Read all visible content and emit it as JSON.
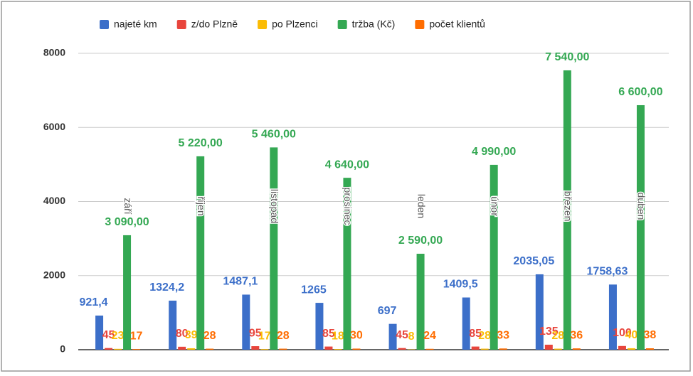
{
  "chart_data": {
    "type": "bar",
    "categories": [
      "září",
      "říjen",
      "listopad",
      "prosinec",
      "leden",
      "únor",
      "březen",
      "duben"
    ],
    "series": [
      {
        "name": "najeté km",
        "color": "#3c6fc9",
        "values": [
          921.4,
          1324.2,
          1487.1,
          1265,
          697,
          1409.5,
          2035.05,
          1758.63
        ],
        "value_labels": [
          "921,4",
          "1324,2",
          "1487,1",
          "1265",
          "697",
          "1409,5",
          "2035,05",
          "1758,63"
        ]
      },
      {
        "name": "z/do Plzně",
        "color": "#e8453c",
        "values": [
          45,
          80,
          95,
          85,
          45,
          85,
          135,
          100
        ]
      },
      {
        "name": "po Plzenci",
        "color": "#fbbc04",
        "values": [
          23,
          39,
          17,
          18,
          8,
          28,
          28,
          40
        ]
      },
      {
        "name": "tržba (Kč)",
        "color": "#34a853",
        "values": [
          3090,
          5220,
          5460,
          4640,
          2590,
          4990,
          7540,
          6600
        ],
        "value_labels": [
          "3 090,00",
          "5 220,00",
          "5 460,00",
          "4 640,00",
          "2 590,00",
          "4 990,00",
          "7 540,00",
          "6 600,00"
        ]
      },
      {
        "name": "počet klientů",
        "color": "#ff6d01",
        "values": [
          17,
          28,
          28,
          30,
          24,
          33,
          36,
          38
        ]
      }
    ],
    "ylim": [
      0,
      8000
    ],
    "yticks": [
      0,
      2000,
      4000,
      6000,
      8000
    ],
    "grid": true,
    "legend": "top"
  }
}
